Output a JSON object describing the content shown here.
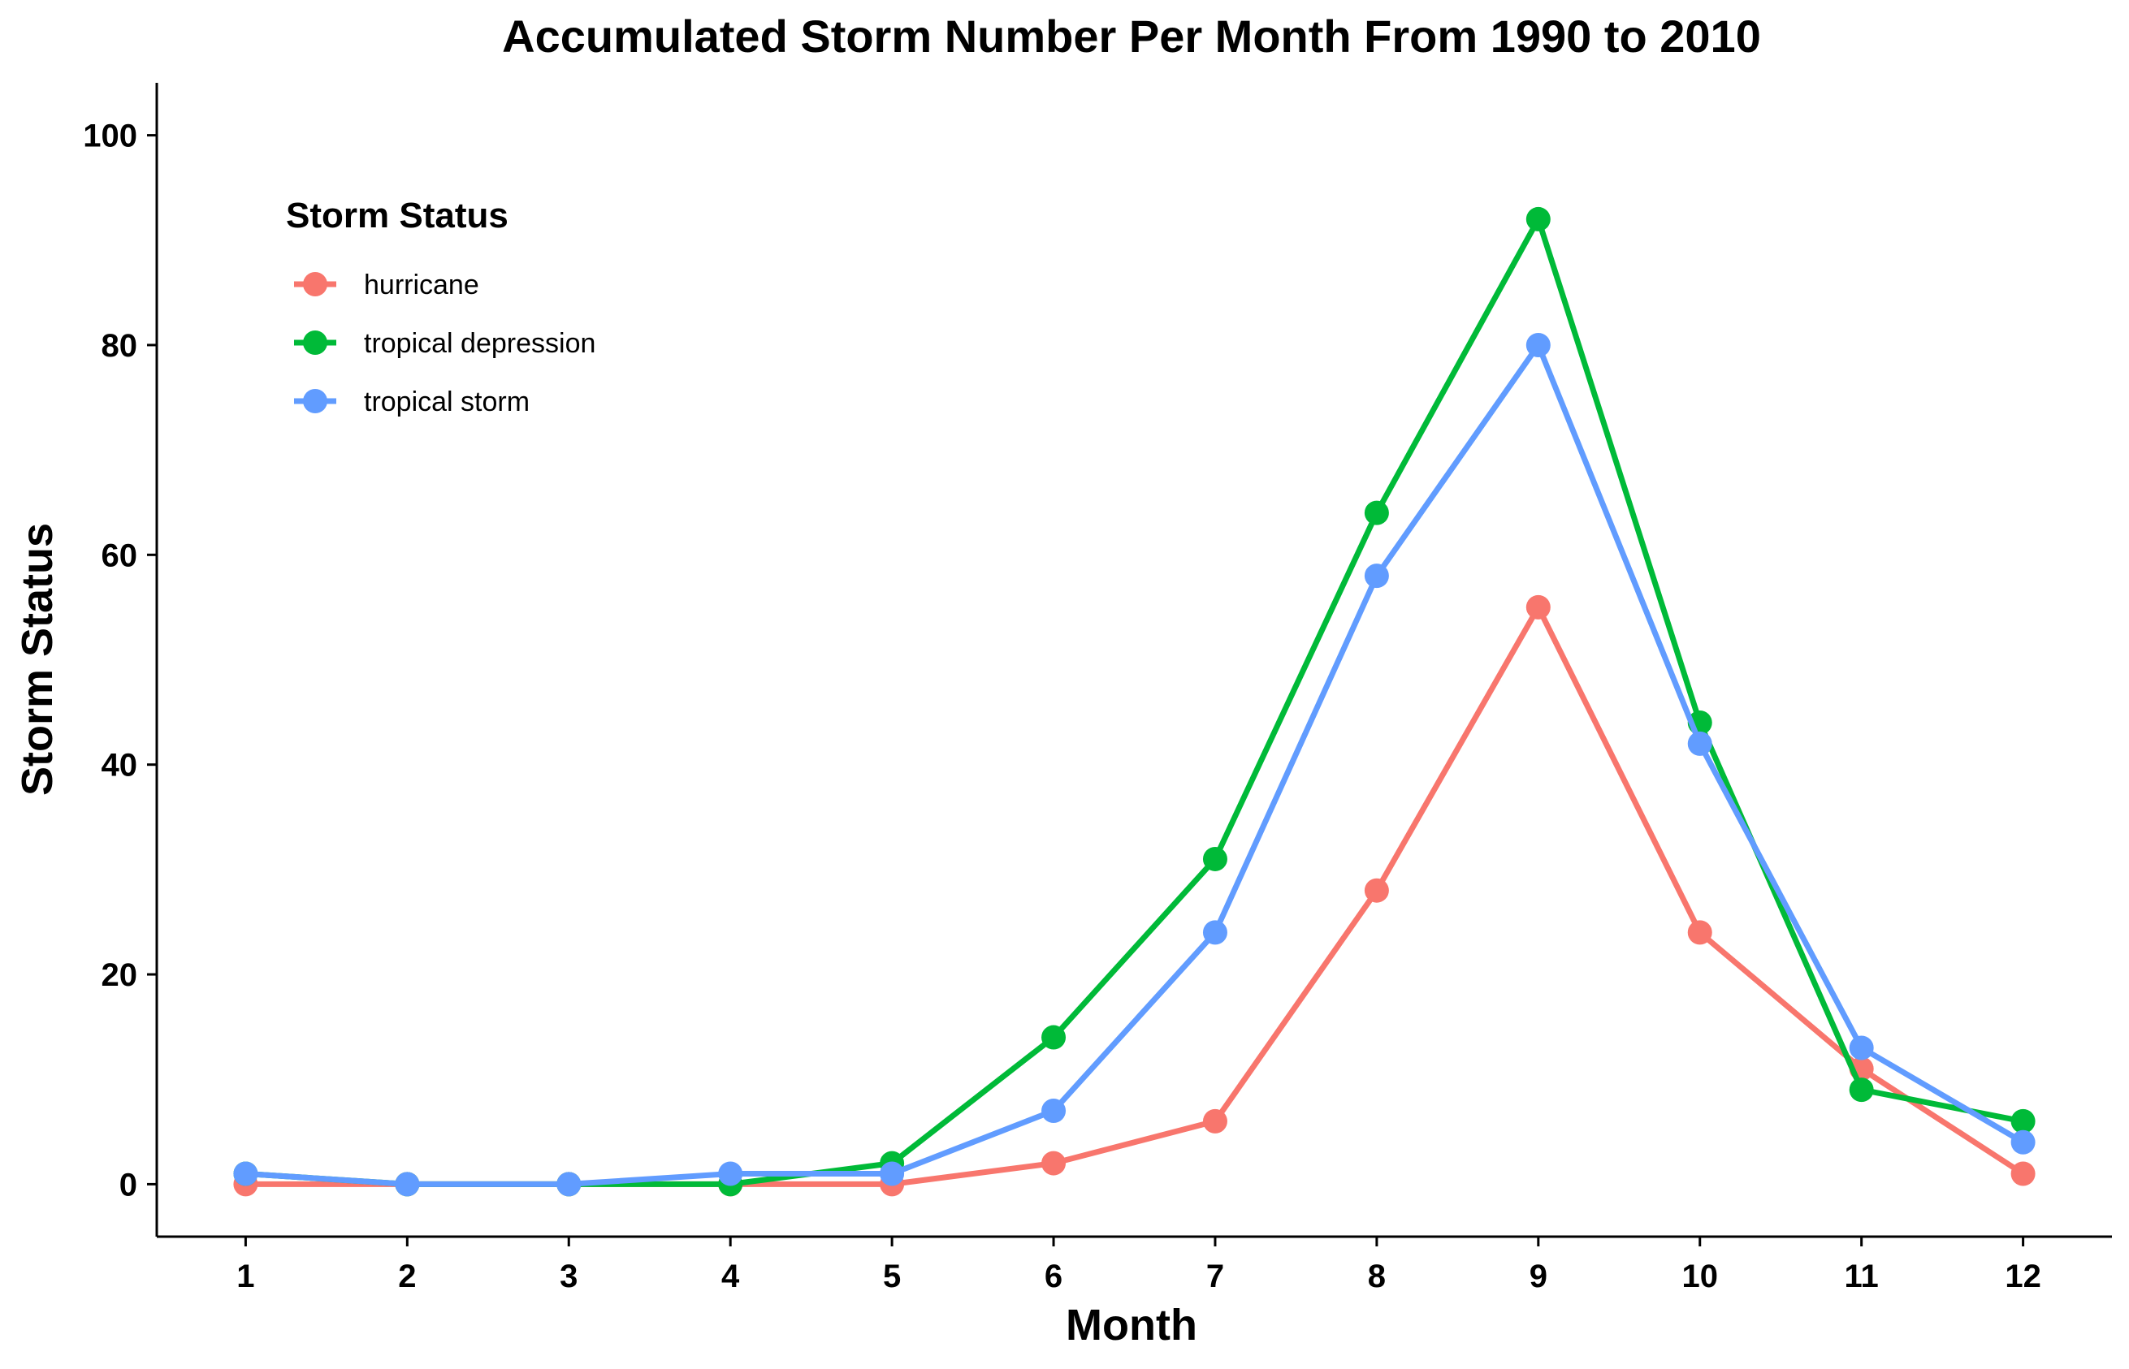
{
  "chart_data": {
    "type": "line",
    "title": "Accumulated Storm Number Per Month From 1990 to 2010",
    "xlabel": "Month",
    "ylabel": "Storm Status",
    "x": [
      1,
      2,
      3,
      4,
      5,
      6,
      7,
      8,
      9,
      10,
      11,
      12
    ],
    "xlim": [
      0.45,
      12.55
    ],
    "ylim": [
      -5,
      105
    ],
    "y_ticks": [
      0,
      20,
      40,
      60,
      80,
      100
    ],
    "x_ticks": [
      1,
      2,
      3,
      4,
      5,
      6,
      7,
      8,
      9,
      10,
      11,
      12
    ],
    "grid": false,
    "legend": {
      "title": "Storm Status",
      "position": "top-left"
    },
    "series": [
      {
        "name": "hurricane",
        "color": "#F8766D",
        "values": [
          0,
          0,
          0,
          0,
          0,
          2,
          6,
          28,
          55,
          24,
          11,
          1
        ]
      },
      {
        "name": "tropical depression",
        "color": "#00BA38",
        "values": [
          1,
          0,
          0,
          0,
          2,
          14,
          31,
          64,
          92,
          44,
          9,
          6
        ]
      },
      {
        "name": "tropical storm",
        "color": "#619CFF",
        "values": [
          1,
          0,
          0,
          1,
          1,
          7,
          24,
          58,
          80,
          42,
          13,
          4
        ]
      }
    ]
  }
}
